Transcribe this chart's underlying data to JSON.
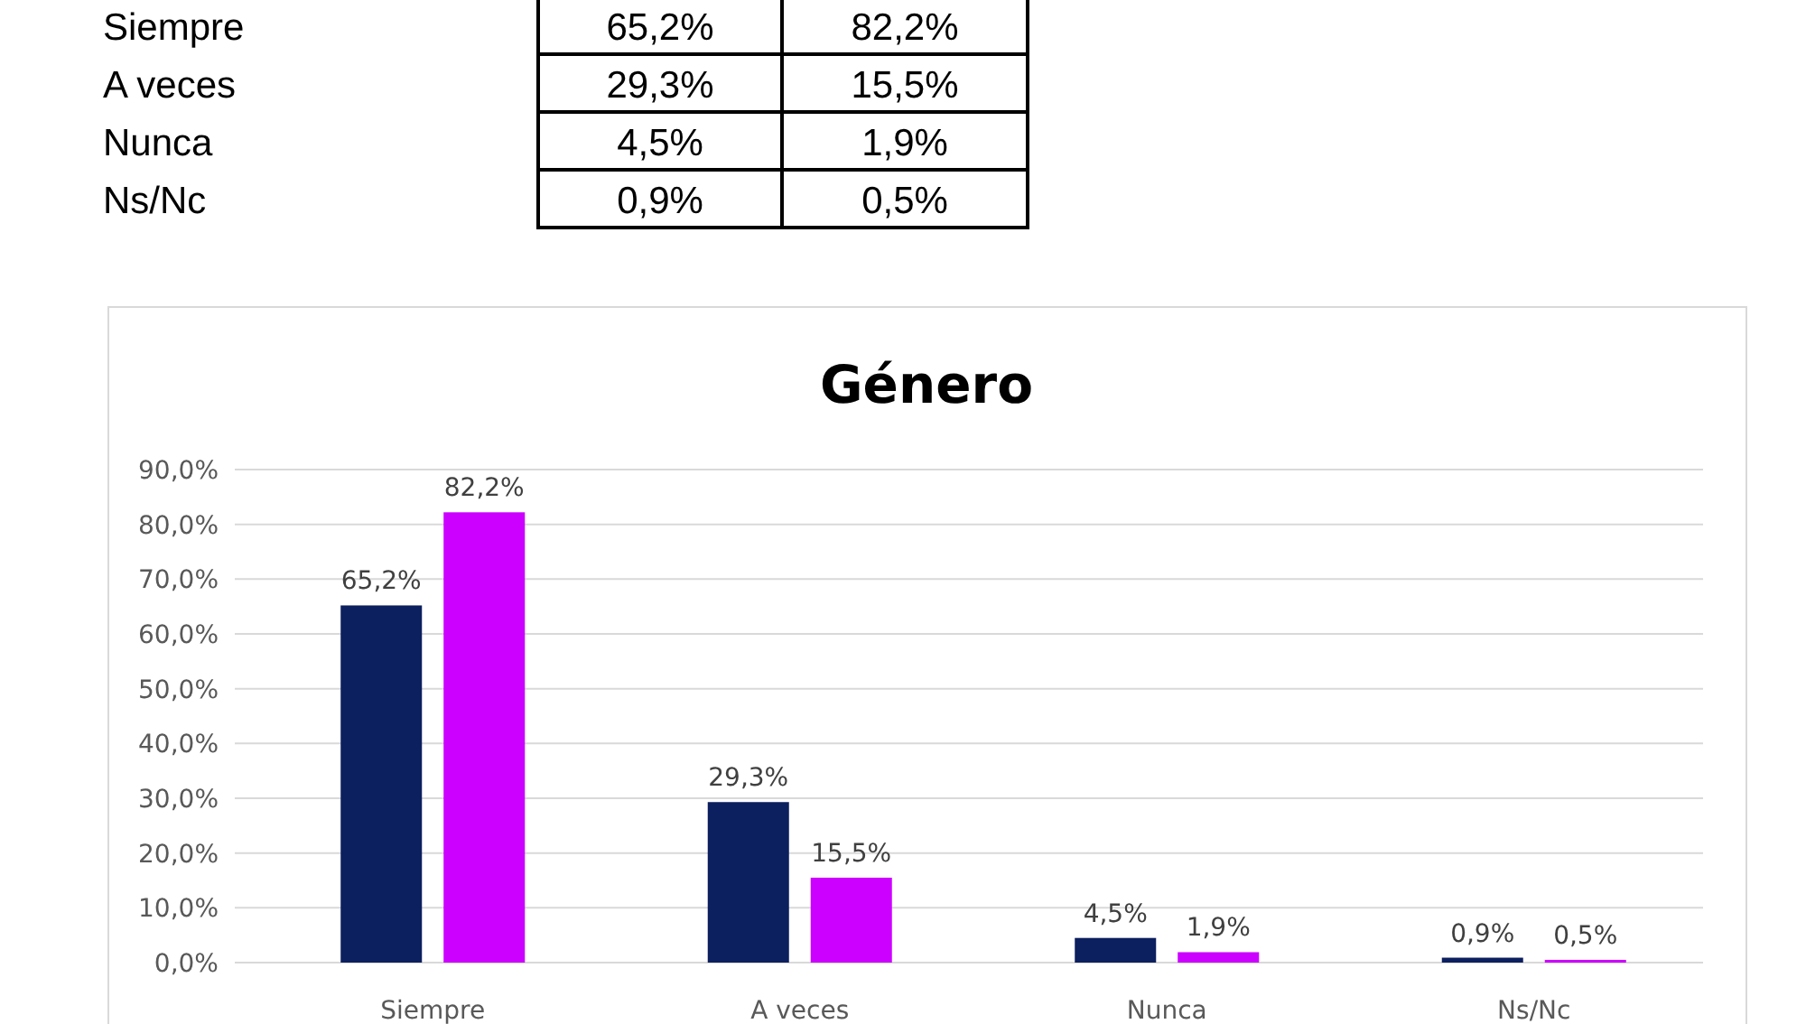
{
  "chart_data": {
    "type": "bar",
    "title": "Género",
    "categories": [
      "Siempre",
      "A veces",
      "Nunca",
      "Ns/Nc"
    ],
    "series": [
      {
        "color": "#0c1f5e",
        "values": [
          65.2,
          29.3,
          4.5,
          0.9
        ],
        "value_labels": [
          "65,2%",
          "29,3%",
          "4,5%",
          "0,9%"
        ]
      },
      {
        "color": "#cc00ff",
        "values": [
          82.2,
          15.5,
          1.9,
          0.5
        ],
        "value_labels": [
          "82,2%",
          "15,5%",
          "1,9%",
          "0,5%"
        ]
      }
    ],
    "ylim": [
      0,
      90
    ],
    "yticks": [
      {
        "value": 0,
        "label": "0,0%"
      },
      {
        "value": 10,
        "label": "10,0%"
      },
      {
        "value": 20,
        "label": "20,0%"
      },
      {
        "value": 30,
        "label": "30,0%"
      },
      {
        "value": 40,
        "label": "40,0%"
      },
      {
        "value": 50,
        "label": "50,0%"
      },
      {
        "value": 60,
        "label": "60,0%"
      },
      {
        "value": 70,
        "label": "70,0%"
      },
      {
        "value": 80,
        "label": "80,0%"
      },
      {
        "value": 90,
        "label": "90,0%"
      }
    ],
    "grid": "y"
  }
}
